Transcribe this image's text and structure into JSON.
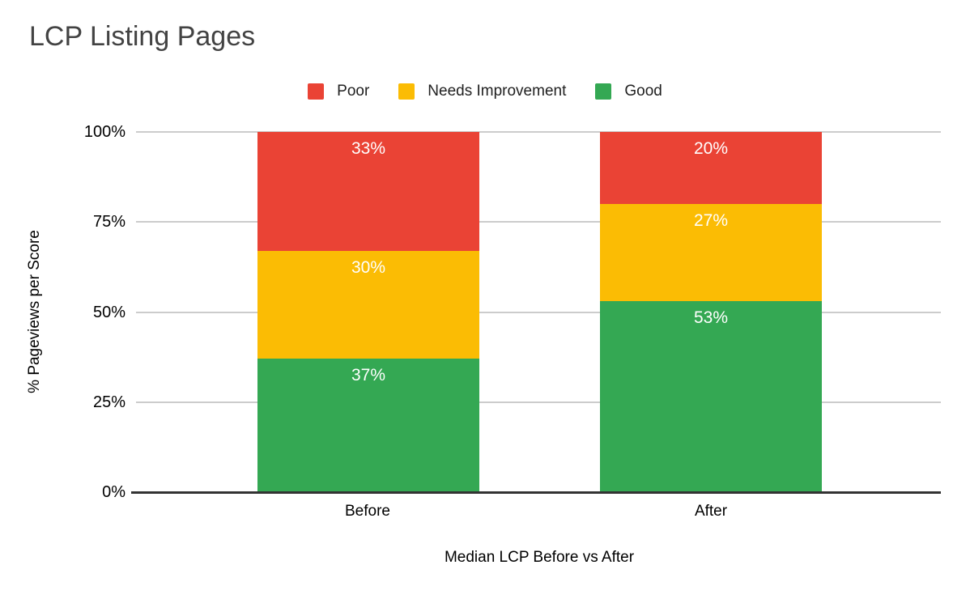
{
  "title": "LCP Listing Pages",
  "legend": {
    "items": [
      "Poor",
      "Needs Improvement",
      "Good"
    ]
  },
  "chart_data": {
    "type": "bar",
    "stacked": true,
    "stacked_mode": "percent",
    "title": "LCP Listing Pages",
    "xlabel": "Median LCP Before vs After",
    "ylabel": "% Pageviews per Score",
    "categories": [
      "Before",
      "After"
    ],
    "series": [
      {
        "name": "Poor",
        "color": "#EA4335",
        "values": [
          33,
          20
        ],
        "labels": [
          "33%",
          "20%"
        ]
      },
      {
        "name": "Needs Improvement",
        "color": "#FBBC04",
        "values": [
          30,
          27
        ],
        "labels": [
          "30%",
          "27%"
        ]
      },
      {
        "name": "Good",
        "color": "#34A853",
        "values": [
          37,
          53
        ],
        "labels": [
          "37%",
          "53%"
        ]
      }
    ],
    "ylim": [
      0,
      100
    ],
    "yticks": [
      "0%",
      "25%",
      "50%",
      "75%",
      "100%"
    ],
    "grid": true,
    "legend_position": "top",
    "data_label_color": "#ffffff"
  },
  "colors": {
    "background": "#ffffff",
    "title_text": "#434343",
    "axis_text": "#000000",
    "gridline": "#cccccc",
    "axis_line": "#333333"
  }
}
